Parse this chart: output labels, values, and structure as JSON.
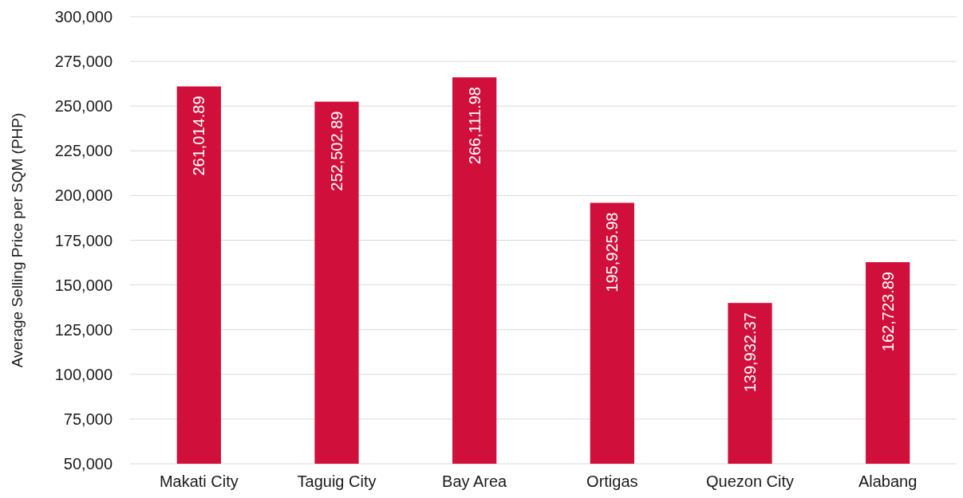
{
  "chart_data": {
    "type": "bar",
    "ylabel": "Average Selling Price per SQM (PHP)",
    "categories": [
      "Makati City",
      "Taguig City",
      "Bay Area",
      "Ortigas",
      "Quezon City",
      "Alabang"
    ],
    "values": [
      261014.89,
      252502.89,
      266111.98,
      195925.98,
      139932.37,
      162723.89
    ],
    "value_labels": [
      "261,014.89",
      "252,502.89",
      "266,111.98",
      "195,925.98",
      "139,932.37",
      "162,723.89"
    ],
    "color": "#d0103a",
    "ylim": [
      50000,
      300000
    ],
    "yticks": [
      {
        "value": 50000,
        "label": "50,000"
      },
      {
        "value": 75000,
        "label": "75,000"
      },
      {
        "value": 100000,
        "label": "100,000"
      },
      {
        "value": 125000,
        "label": "125,000"
      },
      {
        "value": 150000,
        "label": "150,000"
      },
      {
        "value": 175000,
        "label": "175,000"
      },
      {
        "value": 200000,
        "label": "200,000"
      },
      {
        "value": 225000,
        "label": "225,000"
      },
      {
        "value": 250000,
        "label": "250,000"
      },
      {
        "value": 275000,
        "label": "275,000"
      },
      {
        "value": 300000,
        "label": "300,000"
      }
    ],
    "grid": "y"
  }
}
